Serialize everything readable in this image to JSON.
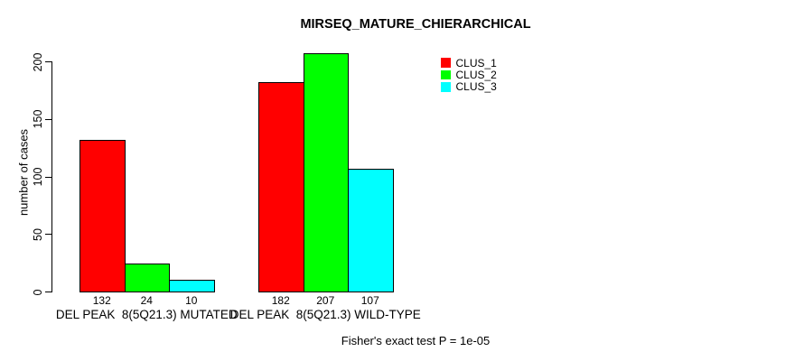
{
  "chart_data": {
    "type": "bar",
    "title": "MIRSEQ_MATURE_CHIERARCHICAL",
    "xlabel": "",
    "ylabel": "number of cases",
    "ylim": [
      0,
      200
    ],
    "yticks": [
      0,
      50,
      100,
      150,
      200
    ],
    "grid": false,
    "legend_position": "top-right",
    "categories": [
      "DEL PEAK  8(5Q21.3) MUTATED",
      "DEL PEAK  8(5Q21.3) WILD-TYPE"
    ],
    "series": [
      {
        "name": "CLUS_1",
        "color": "#ff0000",
        "values": [
          132,
          182
        ]
      },
      {
        "name": "CLUS_2",
        "color": "#00ff00",
        "values": [
          24,
          207
        ]
      },
      {
        "name": "CLUS_3",
        "color": "#00ffff",
        "values": [
          10,
          107
        ]
      }
    ],
    "bar_value_labels": [
      [
        "132",
        "24",
        "10"
      ],
      [
        "182",
        "207",
        "107"
      ]
    ],
    "footnote": "Fisher's exact test P = 1e-05",
    "text_color": "#000000",
    "background_color": "#ffffff"
  }
}
